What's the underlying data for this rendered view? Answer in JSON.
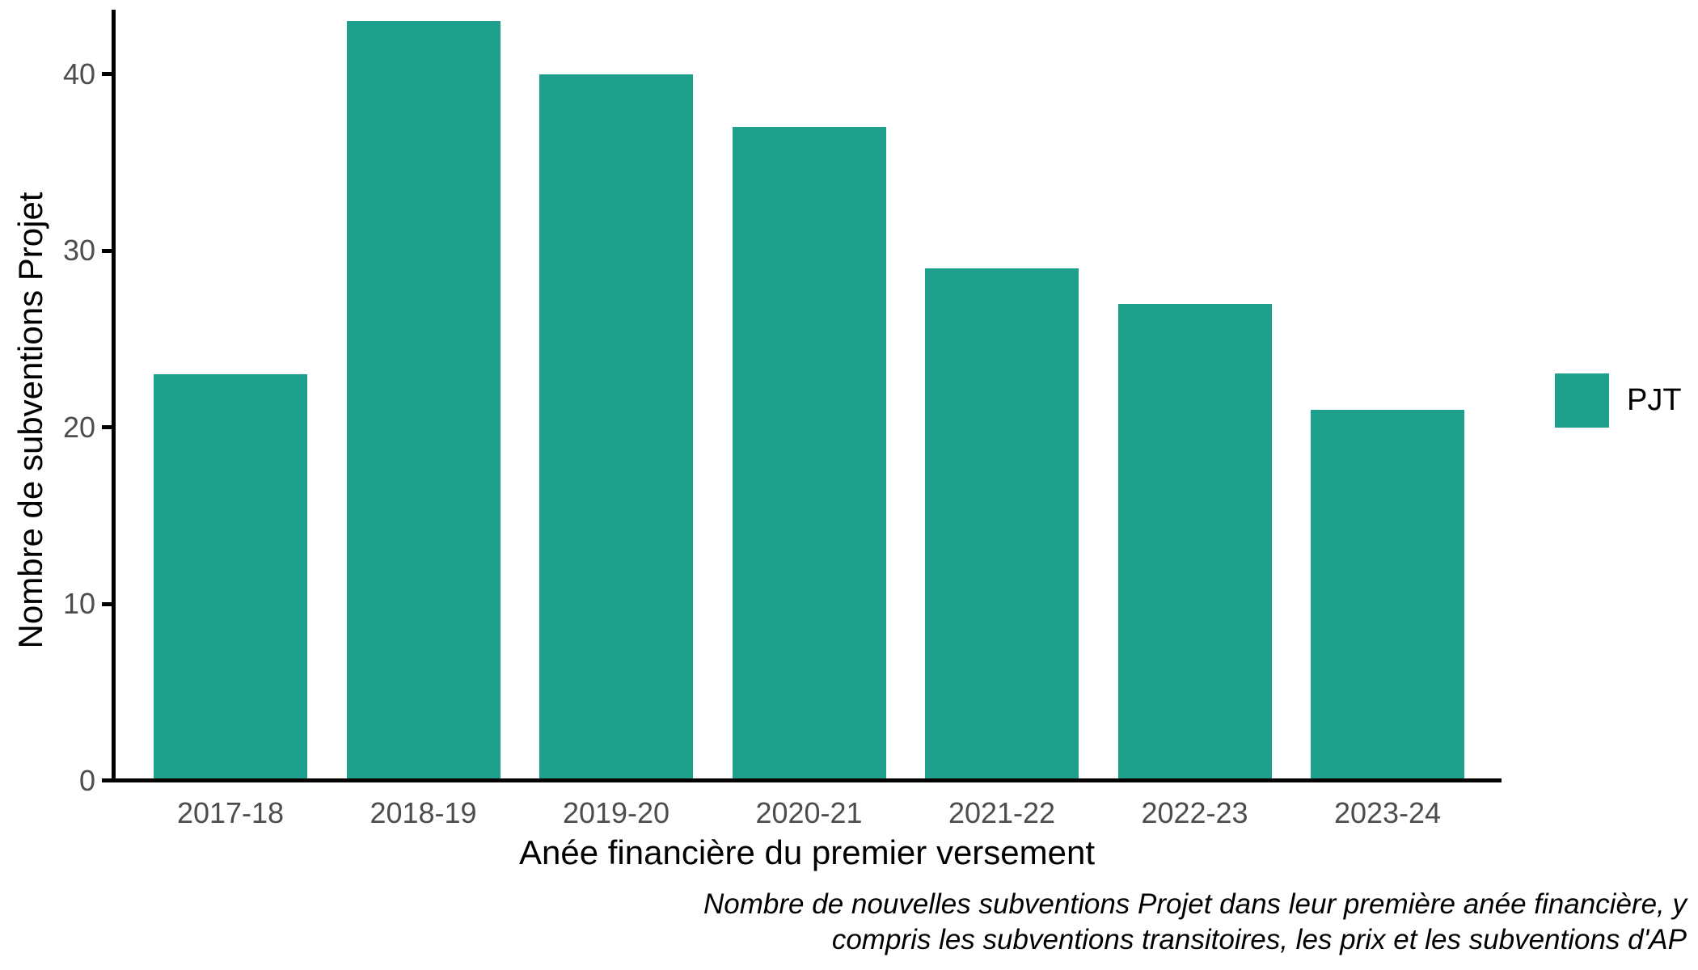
{
  "chart_data": {
    "type": "bar",
    "title": "",
    "xlabel": "Anée financière du premier versement",
    "ylabel": "Nombre de subventions Projet",
    "categories": [
      "2017-18",
      "2018-19",
      "2019-20",
      "2020-21",
      "2021-22",
      "2022-23",
      "2023-24"
    ],
    "series": [
      {
        "name": "PJT",
        "color": "#1FA08C",
        "values": [
          23,
          43,
          40,
          37,
          29,
          27,
          21
        ]
      }
    ],
    "yticks": [
      0,
      10,
      20,
      30,
      40
    ],
    "ylim": [
      0,
      44
    ],
    "grid": false,
    "legend_position": "right",
    "caption_lines": [
      "Nombre de nouvelles subventions Projet dans leur première anée financière, y",
      "compris les subventions transitoires, les prix et les subventions d'AP"
    ],
    "colors": {
      "bar": "#1FA08C",
      "axis_line": "#000000",
      "tick_label": "#4D4D4D",
      "title_text": "#000000",
      "background": "#FFFFFF"
    }
  },
  "legend": {
    "label": "PJT",
    "swatch_color": "#1FA08C"
  }
}
